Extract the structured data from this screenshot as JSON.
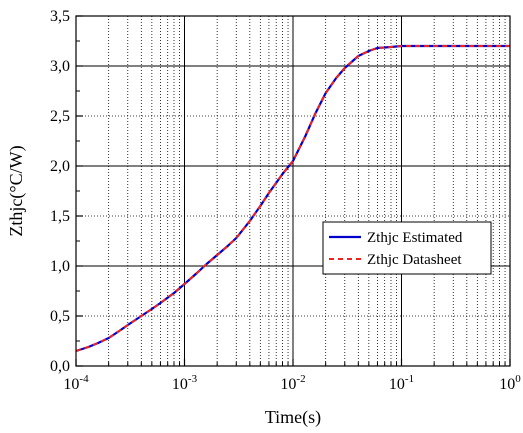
{
  "chart_data": {
    "type": "line",
    "xlabel": "Time(s)",
    "ylabel": "Zthjc(°C/W)",
    "x_scale": "log",
    "xlim": [
      0.0001,
      1
    ],
    "ylim": [
      0,
      3.5
    ],
    "grid": true,
    "legend_position": "right, middle",
    "x_tick_labels": [
      {
        "base": "10",
        "exp": "-4"
      },
      {
        "base": "10",
        "exp": "-3"
      },
      {
        "base": "10",
        "exp": "-2"
      },
      {
        "base": "10",
        "exp": "-1"
      },
      {
        "base": "10",
        "exp": "0"
      }
    ],
    "y_tick_labels": [
      "0,0",
      "0,5",
      "1,0",
      "1,5",
      "2,0",
      "2,5",
      "3,0",
      "3,5"
    ],
    "series": [
      {
        "name": "Zthjc Estimated",
        "color": "#0000cc",
        "style": "solid",
        "x": [
          0.0001,
          0.00013,
          0.00016,
          0.0002,
          0.00025,
          0.0003,
          0.0004,
          0.0005,
          0.0006,
          0.0008,
          0.001,
          0.0013,
          0.0016,
          0.002,
          0.0025,
          0.003,
          0.004,
          0.005,
          0.006,
          0.008,
          0.01,
          0.013,
          0.016,
          0.02,
          0.025,
          0.03,
          0.04,
          0.05,
          0.06,
          0.08,
          0.1,
          0.2,
          0.5,
          1
        ],
        "y": [
          0.15,
          0.19,
          0.23,
          0.28,
          0.35,
          0.41,
          0.5,
          0.57,
          0.63,
          0.73,
          0.82,
          0.93,
          1.02,
          1.11,
          1.2,
          1.28,
          1.45,
          1.6,
          1.73,
          1.92,
          2.05,
          2.3,
          2.52,
          2.73,
          2.88,
          2.98,
          3.1,
          3.15,
          3.18,
          3.19,
          3.2,
          3.2,
          3.2,
          3.2
        ]
      },
      {
        "name": "Zthjc Datasheet",
        "color": "#ee2222",
        "style": "dashed",
        "x": [
          0.0001,
          0.00013,
          0.00016,
          0.0002,
          0.00025,
          0.0003,
          0.0004,
          0.0005,
          0.0006,
          0.0008,
          0.001,
          0.0013,
          0.0016,
          0.002,
          0.0025,
          0.003,
          0.004,
          0.005,
          0.006,
          0.008,
          0.01,
          0.013,
          0.016,
          0.02,
          0.025,
          0.03,
          0.04,
          0.05,
          0.06,
          0.08,
          0.1,
          0.2,
          0.5,
          1
        ],
        "y": [
          0.15,
          0.19,
          0.23,
          0.28,
          0.35,
          0.41,
          0.5,
          0.57,
          0.63,
          0.73,
          0.82,
          0.93,
          1.02,
          1.11,
          1.2,
          1.28,
          1.45,
          1.6,
          1.73,
          1.92,
          2.05,
          2.3,
          2.52,
          2.73,
          2.88,
          2.98,
          3.1,
          3.15,
          3.18,
          3.19,
          3.2,
          3.2,
          3.2,
          3.2
        ]
      }
    ]
  }
}
